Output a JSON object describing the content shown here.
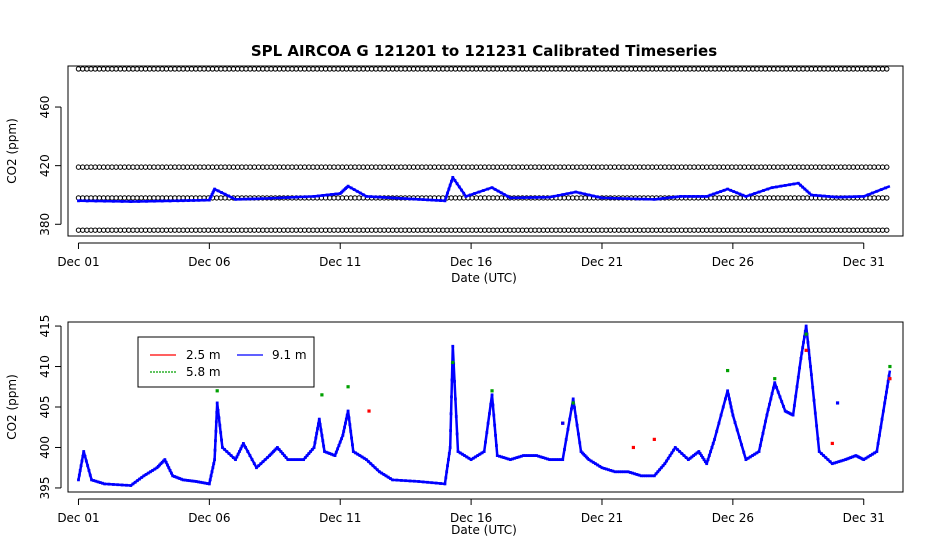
{
  "title": "SPL   AIRCOA  G    121201  to  121231   Calibrated Timeseries",
  "chart_data": [
    {
      "type": "scatter",
      "xlabel": "Date (UTC)",
      "ylabel": "CO2 (ppm)",
      "x_ticks": [
        "Dec 01",
        "Dec 06",
        "Dec 11",
        "Dec 16",
        "Dec 21",
        "Dec 26",
        "Dec 31"
      ],
      "y_ticks": [
        "380",
        "420",
        "460"
      ],
      "xlim_days": [
        0.6,
        32.5
      ],
      "ylim": [
        372,
        488
      ],
      "reference_levels": [
        {
          "name": "",
          "value": 486,
          "color": "#000000"
        },
        {
          "name": "",
          "value": 419,
          "color": "#000000"
        },
        {
          "name": "",
          "value": 398,
          "color": "#000000"
        },
        {
          "name": "",
          "value": 376,
          "color": "#000000"
        }
      ],
      "series": [
        {
          "name": "",
          "color": "#0000ff",
          "values": [
            [
              1.0,
              396.0
            ],
            [
              3.0,
              395.5
            ],
            [
              4.8,
              396.0
            ],
            [
              6.0,
              396.5
            ],
            [
              6.2,
              404.0
            ],
            [
              7.0,
              397.0
            ],
            [
              8.0,
              397.5
            ],
            [
              10.0,
              399.0
            ],
            [
              11.0,
              401.0
            ],
            [
              11.3,
              406.0
            ],
            [
              12.0,
              399.0
            ],
            [
              13.0,
              398.0
            ],
            [
              14.0,
              397.0
            ],
            [
              15.0,
              396.0
            ],
            [
              15.3,
              412.0
            ],
            [
              15.8,
              399.0
            ],
            [
              16.8,
              405.0
            ],
            [
              17.5,
              398.0
            ],
            [
              19.0,
              398.5
            ],
            [
              20.0,
              402.0
            ],
            [
              21.0,
              398.0
            ],
            [
              23.0,
              397.0
            ],
            [
              24.0,
              399.0
            ],
            [
              25.0,
              399.0
            ],
            [
              25.8,
              404.0
            ],
            [
              26.5,
              399.0
            ],
            [
              27.5,
              405.0
            ],
            [
              28.5,
              408.0
            ],
            [
              29.0,
              400.0
            ],
            [
              30.0,
              398.5
            ],
            [
              31.0,
              399.0
            ],
            [
              32.0,
              406.0
            ]
          ]
        }
      ]
    },
    {
      "type": "scatter",
      "xlabel": "Date (UTC)",
      "ylabel": "CO2 (ppm)",
      "x_ticks": [
        "Dec 01",
        "Dec 06",
        "Dec 11",
        "Dec 16",
        "Dec 21",
        "Dec 26",
        "Dec 31"
      ],
      "y_ticks": [
        "395",
        "400",
        "405",
        "410",
        "415"
      ],
      "xlim_days": [
        0.6,
        32.5
      ],
      "ylim": [
        394.5,
        415.5
      ],
      "legend": {
        "position": "top-left",
        "entries": [
          {
            "name": "2.5 m",
            "color": "#ff0000"
          },
          {
            "name": "5.8 m",
            "color": "#00a000"
          },
          {
            "name": "9.1 m",
            "color": "#0000ff"
          }
        ]
      },
      "series": [
        {
          "name": "9.1 m",
          "color": "#0000ff",
          "values": [
            [
              1.0,
              396.0
            ],
            [
              1.2,
              399.5
            ],
            [
              1.5,
              396.0
            ],
            [
              2.0,
              395.5
            ],
            [
              3.0,
              395.3
            ],
            [
              3.5,
              396.5
            ],
            [
              4.0,
              397.5
            ],
            [
              4.3,
              398.5
            ],
            [
              4.6,
              396.5
            ],
            [
              5.0,
              396.0
            ],
            [
              5.5,
              395.8
            ],
            [
              6.0,
              395.5
            ],
            [
              6.2,
              398.5
            ],
            [
              6.3,
              405.5
            ],
            [
              6.5,
              400.0
            ],
            [
              7.0,
              398.5
            ],
            [
              7.3,
              400.5
            ],
            [
              7.8,
              397.5
            ],
            [
              8.3,
              399.0
            ],
            [
              8.6,
              400.0
            ],
            [
              9.0,
              398.5
            ],
            [
              9.6,
              398.5
            ],
            [
              10.0,
              400.0
            ],
            [
              10.2,
              403.5
            ],
            [
              10.4,
              399.5
            ],
            [
              10.8,
              399.0
            ],
            [
              11.1,
              401.5
            ],
            [
              11.3,
              404.5
            ],
            [
              11.5,
              399.5
            ],
            [
              12.0,
              398.5
            ],
            [
              12.5,
              397.0
            ],
            [
              13.0,
              396.0
            ],
            [
              14.0,
              395.8
            ],
            [
              15.0,
              395.5
            ],
            [
              15.2,
              400.0
            ],
            [
              15.3,
              412.5
            ],
            [
              15.5,
              399.5
            ],
            [
              16.0,
              398.5
            ],
            [
              16.5,
              399.5
            ],
            [
              16.8,
              406.5
            ],
            [
              17.0,
              399.0
            ],
            [
              17.5,
              398.5
            ],
            [
              18.0,
              399.0
            ],
            [
              18.5,
              399.0
            ],
            [
              19.0,
              398.5
            ],
            [
              19.5,
              398.5
            ],
            [
              19.9,
              406.0
            ],
            [
              20.2,
              399.5
            ],
            [
              20.5,
              398.5
            ],
            [
              21.0,
              397.5
            ],
            [
              21.5,
              397.0
            ],
            [
              22.0,
              397.0
            ],
            [
              22.5,
              396.5
            ],
            [
              23.0,
              396.5
            ],
            [
              23.4,
              398.0
            ],
            [
              23.8,
              400.0
            ],
            [
              24.3,
              398.5
            ],
            [
              24.7,
              399.5
            ],
            [
              25.0,
              398.0
            ],
            [
              25.3,
              401.0
            ],
            [
              25.8,
              407.0
            ],
            [
              26.0,
              404.0
            ],
            [
              26.5,
              398.5
            ],
            [
              27.0,
              399.5
            ],
            [
              27.3,
              404.0
            ],
            [
              27.6,
              408.0
            ],
            [
              28.0,
              404.5
            ],
            [
              28.3,
              404.0
            ],
            [
              28.6,
              411.0
            ],
            [
              28.8,
              415.0
            ],
            [
              29.0,
              409.0
            ],
            [
              29.3,
              399.5
            ],
            [
              29.8,
              398.0
            ],
            [
              30.3,
              398.5
            ],
            [
              30.7,
              399.0
            ],
            [
              31.0,
              398.5
            ],
            [
              31.5,
              399.5
            ],
            [
              31.8,
              405.5
            ],
            [
              32.0,
              409.5
            ]
          ]
        },
        {
          "name": "5.8 m",
          "color": "#00a000",
          "values": [
            [
              6.3,
              407.0
            ],
            [
              10.3,
              406.5
            ],
            [
              11.3,
              407.5
            ],
            [
              15.3,
              410.5
            ],
            [
              16.8,
              407.0
            ],
            [
              19.9,
              405.5
            ],
            [
              25.8,
              409.5
            ],
            [
              27.6,
              408.5
            ],
            [
              28.8,
              414.0
            ],
            [
              32.0,
              410.0
            ]
          ]
        },
        {
          "name": "2.5 m",
          "color": "#ff0000",
          "values": [
            [
              12.1,
              404.5
            ],
            [
              19.5,
              403.0
            ],
            [
              22.2,
              400.0
            ],
            [
              23.0,
              401.0
            ],
            [
              28.8,
              412.0
            ],
            [
              29.8,
              400.5
            ],
            [
              32.0,
              408.5
            ]
          ]
        }
      ],
      "outliers": [
        {
          "x": 19.5,
          "y": 403.0,
          "color": "#0000ff"
        },
        {
          "x": 30.0,
          "y": 405.5,
          "color": "#0000ff"
        }
      ]
    }
  ]
}
